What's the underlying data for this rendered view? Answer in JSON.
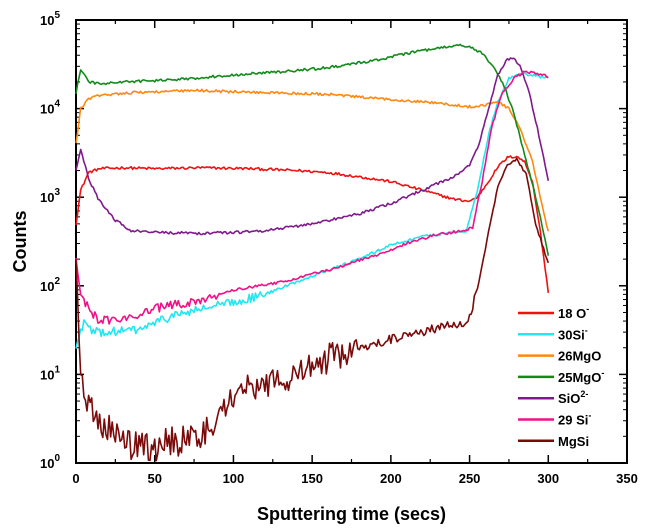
{
  "chart_data": {
    "type": "line",
    "title": "",
    "xlabel": "Sputtering time (secs)",
    "ylabel": "Counts",
    "xlim": [
      0,
      350
    ],
    "ylim": [
      1,
      100000
    ],
    "yscale": "log",
    "grid": false,
    "legend_position": "bottom-right",
    "x_ticks": [
      {
        "value": 0,
        "label": "0"
      },
      {
        "value": 50,
        "label": "50"
      },
      {
        "value": 100,
        "label": "100"
      },
      {
        "value": 150,
        "label": "150"
      },
      {
        "value": 200,
        "label": "200"
      },
      {
        "value": 250,
        "label": "250"
      },
      {
        "value": 300,
        "label": "300"
      },
      {
        "value": 350,
        "label": "350"
      }
    ],
    "y_ticks": [
      {
        "value": 1,
        "base": "10",
        "exp": "0"
      },
      {
        "value": 10,
        "base": "10",
        "exp": "1"
      },
      {
        "value": 100,
        "base": "10",
        "exp": "2"
      },
      {
        "value": 1000,
        "base": "10",
        "exp": "3"
      },
      {
        "value": 10000,
        "base": "10",
        "exp": "4"
      },
      {
        "value": 100000,
        "base": "10",
        "exp": "5"
      }
    ],
    "series": [
      {
        "name": "18 O",
        "sup": "-",
        "color": "#ee1111",
        "x": [
          0,
          3,
          8,
          15,
          30,
          50,
          80,
          110,
          140,
          160,
          180,
          200,
          220,
          240,
          250,
          255,
          262,
          268,
          274,
          280,
          285,
          290,
          295,
          300
        ],
        "y": [
          500,
          1200,
          1900,
          2100,
          2150,
          2100,
          2150,
          2100,
          2000,
          1900,
          1700,
          1500,
          1200,
          950,
          900,
          1000,
          1500,
          2200,
          2800,
          2900,
          2500,
          1500,
          400,
          85
        ]
      },
      {
        "name": "30Si",
        "sup": "-",
        "color": "#22e6f0",
        "x": [
          0,
          5,
          10,
          20,
          40,
          60,
          80,
          100,
          120,
          150,
          180,
          200,
          220,
          240,
          248,
          255,
          262,
          268,
          275,
          282,
          290,
          300
        ],
        "y": [
          20,
          40,
          30,
          30,
          32,
          45,
          55,
          65,
          80,
          130,
          200,
          290,
          360,
          400,
          420,
          1200,
          5000,
          12000,
          22000,
          25000,
          24000,
          22000
        ]
      },
      {
        "name": "26MgO",
        "sup": "",
        "color": "#ff8811",
        "x": [
          0,
          3,
          8,
          15,
          30,
          50,
          80,
          100,
          130,
          160,
          190,
          220,
          240,
          250,
          260,
          268,
          275,
          282,
          290,
          295,
          300
        ],
        "y": [
          4000,
          10000,
          13000,
          14000,
          15000,
          15500,
          16000,
          15500,
          15000,
          14500,
          13000,
          12000,
          11000,
          10500,
          11000,
          12000,
          10000,
          6000,
          2500,
          1000,
          400
        ]
      },
      {
        "name": "25MgO",
        "sup": "-",
        "color": "#128a1a",
        "x": [
          0,
          3,
          8,
          15,
          30,
          60,
          100,
          130,
          160,
          190,
          210,
          230,
          245,
          250,
          258,
          265,
          272,
          278,
          284,
          290,
          295,
          300
        ],
        "y": [
          15000,
          28000,
          20000,
          19000,
          20000,
          21000,
          24000,
          26000,
          29000,
          35000,
          42000,
          48000,
          52000,
          50000,
          42000,
          30000,
          18000,
          9000,
          3500,
          1400,
          600,
          220
        ]
      },
      {
        "name": "SiO",
        "sup": "2-",
        "color": "#801a8c",
        "x": [
          0,
          3,
          8,
          15,
          25,
          35,
          50,
          80,
          100,
          120,
          150,
          180,
          200,
          220,
          240,
          250,
          256,
          262,
          268,
          274,
          278,
          282,
          288,
          294,
          300
        ],
        "y": [
          2000,
          3500,
          1600,
          900,
          550,
          420,
          400,
          390,
          400,
          420,
          500,
          650,
          850,
          1200,
          1700,
          2300,
          4000,
          10000,
          24000,
          36000,
          37000,
          30000,
          15000,
          5000,
          1500
        ]
      },
      {
        "name": "29 Si",
        "sup": "-",
        "color": "#ee1188",
        "x": [
          0,
          3,
          8,
          15,
          30,
          50,
          80,
          100,
          130,
          160,
          190,
          210,
          230,
          245,
          252,
          258,
          264,
          270,
          278,
          285,
          292,
          300
        ],
        "y": [
          200,
          80,
          55,
          40,
          42,
          55,
          70,
          90,
          110,
          150,
          220,
          300,
          380,
          420,
          450,
          1500,
          6000,
          14000,
          22000,
          26000,
          25000,
          23000
        ]
      },
      {
        "name": "MgSi",
        "sup": "",
        "color": "#7a0a0a",
        "x": [
          0,
          3,
          8,
          15,
          25,
          35,
          45,
          60,
          75,
          90,
          100,
          120,
          140,
          160,
          180,
          200,
          220,
          240,
          248,
          255,
          262,
          268,
          274,
          280,
          286,
          292,
          300
        ],
        "y": [
          200,
          9,
          5,
          3,
          2,
          1.5,
          1.5,
          1.7,
          2,
          3,
          6,
          8,
          10,
          15,
          20,
          25,
          30,
          38,
          35,
          90,
          400,
          1300,
          2300,
          2700,
          1800,
          500,
          180
        ]
      }
    ]
  }
}
